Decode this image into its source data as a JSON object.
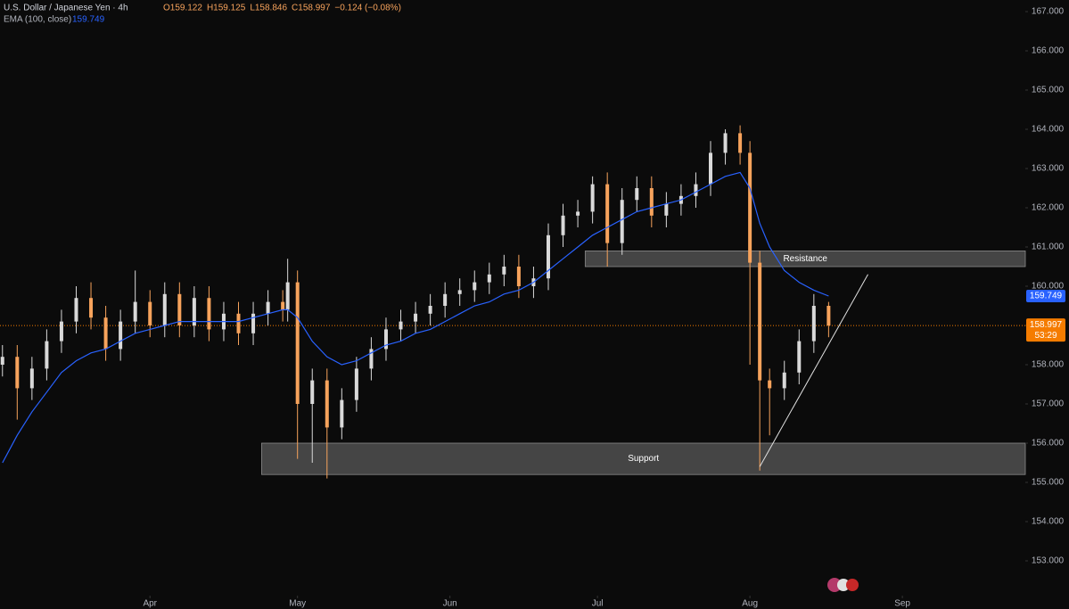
{
  "chart_data": {
    "type": "candlestick",
    "title": "U.S. Dollar / Japanese Yen · 4h",
    "ohlc_labels": [
      "O159.122",
      "H159.125",
      "L158.846",
      "C158.997",
      "−0.124 (−0.08%)"
    ],
    "indicator": {
      "name": "EMA (100, close)",
      "value": 159.749,
      "label": "159.749",
      "color": "#2962ff"
    },
    "up_color": "#d9d9d9",
    "down_color": "#f7a35c",
    "x": [
      -30,
      -27,
      -24,
      -21,
      -18,
      -15,
      -12,
      -9,
      -6,
      -3,
      0,
      3,
      6,
      9,
      12,
      15,
      18,
      21,
      24,
      27,
      28,
      30,
      33,
      36,
      39,
      42,
      45,
      48,
      51,
      54,
      57,
      60,
      63,
      66,
      69,
      72,
      75,
      78,
      81,
      84,
      87,
      90,
      93,
      96,
      99,
      102,
      105,
      108,
      111,
      114,
      117,
      120,
      122,
      124,
      126,
      129,
      132,
      135,
      138
    ],
    "open": [
      158.0,
      158.2,
      157.4,
      157.9,
      158.6,
      159.1,
      159.7,
      159.2,
      158.4,
      159.1,
      159.6,
      159.0,
      159.8,
      159.0,
      159.7,
      158.9,
      159.3,
      158.8,
      159.3,
      159.6,
      159.4,
      160.1,
      157.0,
      157.6,
      156.4,
      157.1,
      157.9,
      158.4,
      158.9,
      159.1,
      159.3,
      159.5,
      159.8,
      159.9,
      160.1,
      160.3,
      160.5,
      160.0,
      160.2,
      161.3,
      161.8,
      161.9,
      162.6,
      161.1,
      162.2,
      162.5,
      161.8,
      162.1,
      162.3,
      162.6,
      163.4,
      163.9,
      163.4,
      160.6,
      157.6,
      157.4,
      157.8,
      158.6,
      159.5
    ],
    "high": [
      158.5,
      158.5,
      158.2,
      158.9,
      159.4,
      160.0,
      160.1,
      159.5,
      159.4,
      160.4,
      159.9,
      160.1,
      160.1,
      160.0,
      160.0,
      159.6,
      159.6,
      159.6,
      159.9,
      159.9,
      160.7,
      160.4,
      157.9,
      157.9,
      157.4,
      158.2,
      158.7,
      159.2,
      159.4,
      159.6,
      159.8,
      160.1,
      160.2,
      160.4,
      160.6,
      160.8,
      160.8,
      160.5,
      161.6,
      162.1,
      162.2,
      162.8,
      162.9,
      162.5,
      162.8,
      162.8,
      162.4,
      162.6,
      162.9,
      163.7,
      164.0,
      164.1,
      163.7,
      160.9,
      157.9,
      158.1,
      158.9,
      159.8,
      159.6
    ],
    "low": [
      157.7,
      156.6,
      157.1,
      157.6,
      158.3,
      158.8,
      158.9,
      158.1,
      158.1,
      158.8,
      158.7,
      158.7,
      158.7,
      158.7,
      158.6,
      158.6,
      158.5,
      158.5,
      159.0,
      159.1,
      159.1,
      155.6,
      155.5,
      155.1,
      156.1,
      156.8,
      157.6,
      158.1,
      158.6,
      158.8,
      159.0,
      159.2,
      159.5,
      159.6,
      159.8,
      160.0,
      159.7,
      159.7,
      159.9,
      161.0,
      161.5,
      161.6,
      160.5,
      160.8,
      161.9,
      161.5,
      161.5,
      161.8,
      162.0,
      162.3,
      163.1,
      163.1,
      158.0,
      155.3,
      156.2,
      157.1,
      157.5,
      158.3,
      158.7
    ],
    "close": [
      158.2,
      157.4,
      157.9,
      158.6,
      159.1,
      159.7,
      159.2,
      158.4,
      159.1,
      159.6,
      159.0,
      159.8,
      159.0,
      159.7,
      158.9,
      159.3,
      158.8,
      159.3,
      159.6,
      159.4,
      160.1,
      157.0,
      157.6,
      156.4,
      157.1,
      157.9,
      158.4,
      158.9,
      159.1,
      159.3,
      159.5,
      159.8,
      159.9,
      160.1,
      160.3,
      160.5,
      160.0,
      160.2,
      161.3,
      161.8,
      161.9,
      162.6,
      161.1,
      162.2,
      162.5,
      161.8,
      162.1,
      162.3,
      162.6,
      163.4,
      163.9,
      163.4,
      160.6,
      157.6,
      157.4,
      157.8,
      158.6,
      159.5,
      159.0
    ],
    "ema": [
      155.5,
      156.2,
      156.8,
      157.3,
      157.8,
      158.1,
      158.3,
      158.4,
      158.6,
      158.8,
      158.9,
      159.0,
      159.1,
      159.1,
      159.1,
      159.1,
      159.1,
      159.2,
      159.3,
      159.4,
      159.4,
      159.2,
      158.6,
      158.2,
      158.0,
      158.1,
      158.3,
      158.5,
      158.6,
      158.8,
      158.9,
      159.1,
      159.3,
      159.5,
      159.6,
      159.8,
      159.9,
      160.1,
      160.4,
      160.7,
      161.0,
      161.3,
      161.5,
      161.7,
      161.9,
      162.0,
      162.1,
      162.2,
      162.4,
      162.6,
      162.8,
      162.9,
      162.5,
      161.6,
      161.0,
      160.4,
      160.1,
      159.9,
      159.75
    ],
    "last_price": {
      "value": 158.997,
      "label": "158.997",
      "countdown": "53:29",
      "color": "#f57c00"
    },
    "zones": [
      {
        "label": "Resistance",
        "from": 88.5,
        "to": 178,
        "low": 160.5,
        "high": 160.9
      },
      {
        "label": "Support",
        "from": 22.7,
        "to": 178,
        "low": 155.2,
        "high": 156.0
      }
    ],
    "trendline": {
      "x": [
        124,
        146
      ],
      "y": [
        155.4,
        160.3
      ]
    },
    "xlim": [
      -30.5,
      178
    ],
    "xticks": [
      {
        "value": 0,
        "label": "Apr"
      },
      {
        "value": 30,
        "label": "May"
      },
      {
        "value": 61,
        "label": "Jun"
      },
      {
        "value": 91,
        "label": "Jul"
      },
      {
        "value": 122,
        "label": "Aug"
      },
      {
        "value": 153,
        "label": "Sep"
      }
    ],
    "ylim": [
      153,
      167
    ],
    "yticks": [
      {
        "value": 153,
        "label": "153.000"
      },
      {
        "value": 154,
        "label": "154.000"
      },
      {
        "value": 155,
        "label": "155.000"
      },
      {
        "value": 156,
        "label": "156.000"
      },
      {
        "value": 157,
        "label": "157.000"
      },
      {
        "value": 158,
        "label": "158.000"
      },
      {
        "value": 159,
        "label": "159.000"
      },
      {
        "value": 160,
        "label": "160.000"
      },
      {
        "value": 161,
        "label": "161.000"
      },
      {
        "value": 162,
        "label": "162.000"
      },
      {
        "value": 163,
        "label": "163.000"
      },
      {
        "value": 164,
        "label": "164.000"
      },
      {
        "value": 165,
        "label": "165.000"
      },
      {
        "value": 166,
        "label": "166.000"
      },
      {
        "value": 167,
        "label": "167.000"
      }
    ]
  }
}
